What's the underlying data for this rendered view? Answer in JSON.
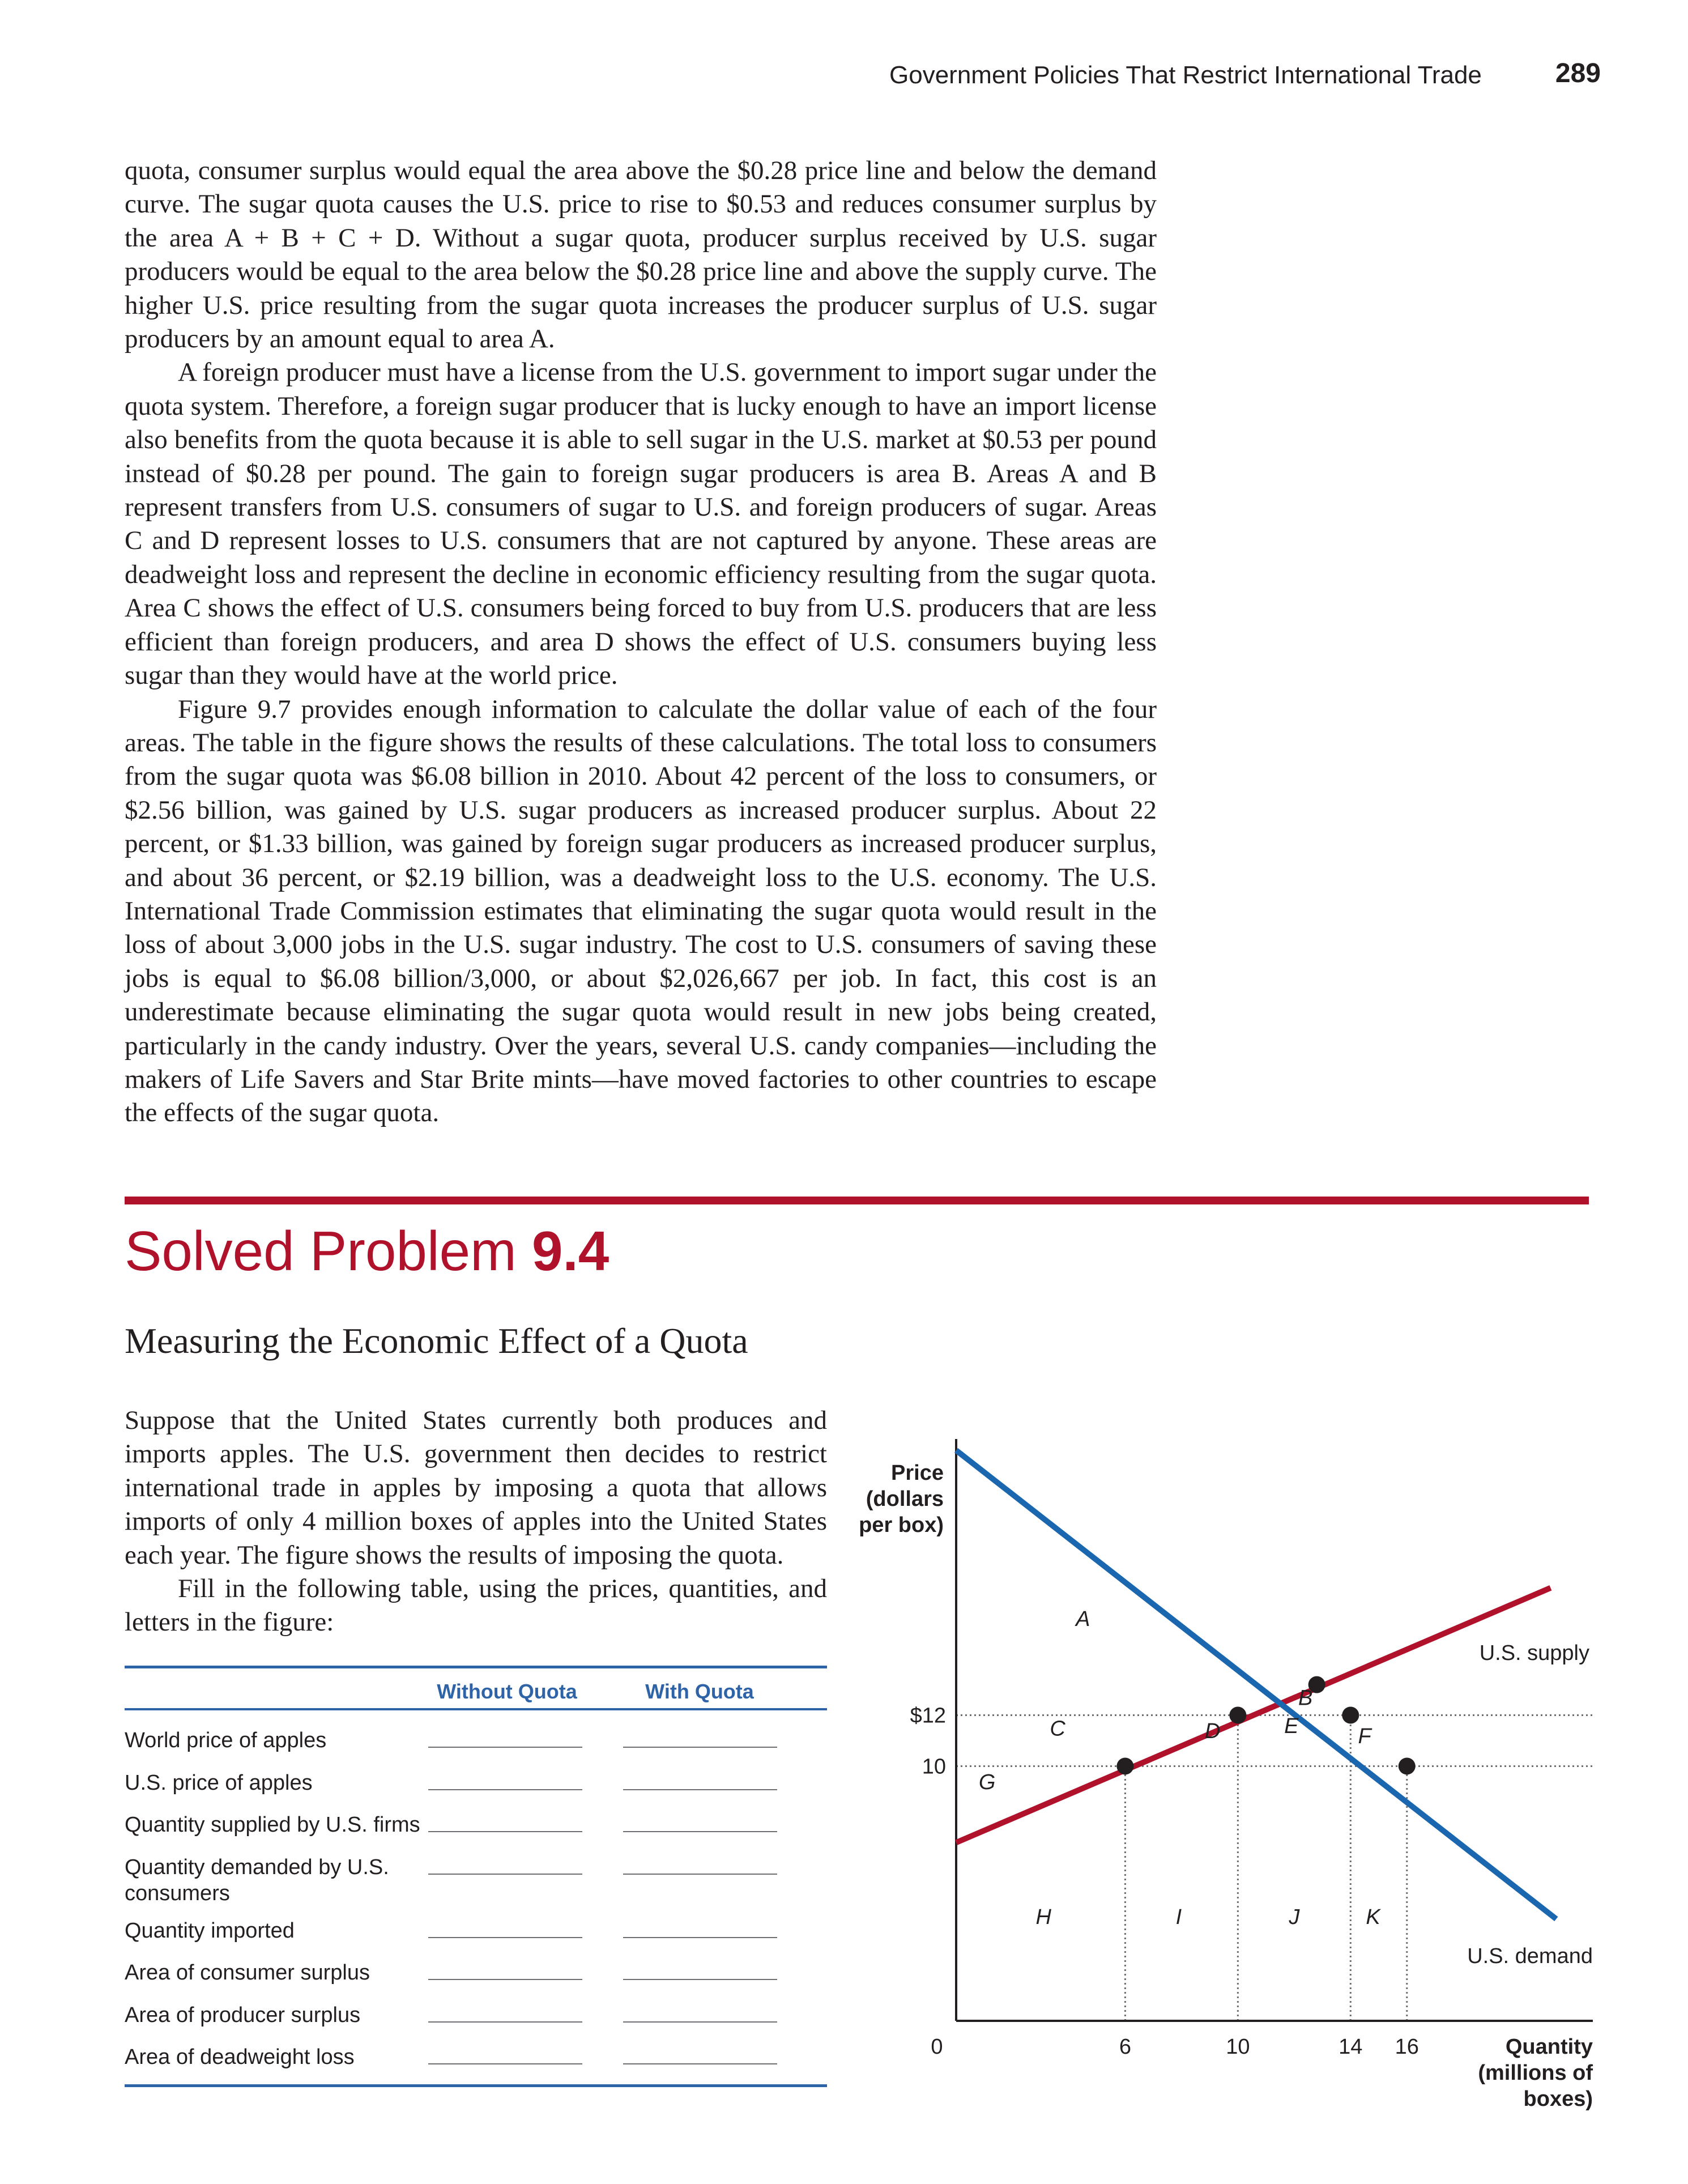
{
  "header": {
    "running_head": "Government Policies That Restrict International Trade",
    "page_number": "289"
  },
  "body": {
    "p1": "quota, consumer surplus would equal the area above the $0.28 price line and below the demand curve. The sugar quota causes the U.S. price to rise to $0.53 and reduces consumer surplus by the area A + B + C + D. Without a sugar quota, producer surplus received by U.S. sugar producers would be equal to the area below the $0.28 price line and above the supply curve. The higher U.S. price resulting from the sugar quota increases the producer surplus of U.S. sugar producers by an amount equal to area A.",
    "p2": "A foreign producer must have a license from the U.S. government to import sugar under the quota system. Therefore, a foreign sugar producer that is lucky enough to have an import license also benefits from the quota because it is able to sell sugar in the U.S. market at $0.53 per pound instead of $0.28 per pound. The gain to foreign sugar producers is area B. Areas A and B represent transfers from U.S. consumers of sugar to U.S. and foreign producers of sugar. Areas C and D represent losses to U.S. consumers that are not captured by anyone. These areas are deadweight loss and represent the decline in economic efficiency resulting from the sugar quota. Area C shows the effect of U.S. consumers being forced to buy from U.S. producers that are less efficient than foreign producers, and area D shows the effect of U.S. consumers buying less sugar than they would have at the world price.",
    "p3": "Figure 9.7 provides enough information to calculate the dollar value of each of the four areas. The table in the figure shows the results of these calculations. The total loss to consumers from the sugar quota was $6.08 billion in 2010. About 42 percent of the loss to consumers, or $2.56 billion, was gained by U.S. sugar producers as increased producer surplus. About 22 percent, or $1.33 billion, was gained by foreign sugar producers as increased producer surplus, and about 36 percent, or $2.19 billion, was a deadweight loss to the U.S. economy. The U.S. International Trade Commission estimates that eliminating the sugar quota would result in the loss of about 3,000 jobs in the U.S. sugar industry. The cost to U.S. consumers of saving these jobs is equal to $6.08 billion/3,000, or about $2,026,667 per job. In fact, this cost is an underestimate because eliminating the sugar quota would result in new jobs being created, particularly in the candy industry. Over the years, several U.S. candy companies—including the makers of Life Savers and Star Brite mints—have moved factories to other countries to escape the effects of the sugar quota."
  },
  "solved_problem": {
    "label": "Solved Problem",
    "number": "9.4",
    "subtitle": "Measuring the Economic Effect of a Quota",
    "p1": "Suppose that the United States currently both produces and imports apples. The U.S. government then decides to restrict international trade in apples by imposing a quota that allows imports of only 4 million boxes of apples into the United States each year. The figure shows the results of imposing the quota.",
    "p2": "Fill in the following table, using the prices, quantities, and letters in the figure:"
  },
  "table": {
    "col1": "Without Quota",
    "col2": "With Quota",
    "rows": [
      "World price of apples",
      "U.S. price of apples",
      "Quantity supplied by U.S. firms",
      "Quantity demanded by U.S. consumers",
      "Quantity imported",
      "Area of consumer surplus",
      "Area of producer surplus",
      "Area of deadweight loss"
    ]
  },
  "chart_data": {
    "type": "line",
    "ylabel": "Price (dollars per box)",
    "ylabel_lines": [
      "Price",
      "(dollars",
      "per box)"
    ],
    "xlabel": "Quantity (millions of boxes)",
    "xlabel_lines": [
      "Quantity",
      "(millions of",
      "boxes)"
    ],
    "origin_label": "0",
    "x_ticks": [
      6,
      10,
      14,
      16
    ],
    "y_ticks": [
      {
        "value": 12,
        "label": "$12"
      },
      {
        "value": 10,
        "label": "10"
      }
    ],
    "xlim": [
      0,
      22.6
    ],
    "ylim": [
      0,
      22.4
    ],
    "series": [
      {
        "name": "U.S. supply",
        "color": "#b0122b",
        "points": [
          [
            0,
            7
          ],
          [
            21.1,
            17
          ]
        ]
      },
      {
        "name": "U.S. demand",
        "color": "#1a67b0",
        "points": [
          [
            0,
            22.4
          ],
          [
            21.3,
            4
          ]
        ]
      }
    ],
    "points": [
      {
        "x": 6,
        "y": 10
      },
      {
        "x": 10,
        "y": 12
      },
      {
        "x": 12.8,
        "y": 13.2
      },
      {
        "x": 14,
        "y": 12
      },
      {
        "x": 16,
        "y": 10
      }
    ],
    "area_labels": [
      {
        "text": "A",
        "x": 4.5,
        "y": 15.5
      },
      {
        "text": "B",
        "x": 12.4,
        "y": 12.4
      },
      {
        "text": "C",
        "x": 3.6,
        "y": 11.2
      },
      {
        "text": "D",
        "x": 9.1,
        "y": 11.1
      },
      {
        "text": "E",
        "x": 11.9,
        "y": 11.3
      },
      {
        "text": "F",
        "x": 14.5,
        "y": 10.9
      },
      {
        "text": "G",
        "x": 1.1,
        "y": 9.1
      },
      {
        "text": "H",
        "x": 3.1,
        "y": 3.8
      },
      {
        "text": "I",
        "x": 7.9,
        "y": 3.8
      },
      {
        "text": "J",
        "x": 12.0,
        "y": 3.8
      },
      {
        "text": "K",
        "x": 14.8,
        "y": 3.8
      }
    ],
    "guide_lines": {
      "horizontal": [
        12,
        10
      ],
      "vertical": [
        6,
        10,
        14,
        16
      ]
    }
  }
}
